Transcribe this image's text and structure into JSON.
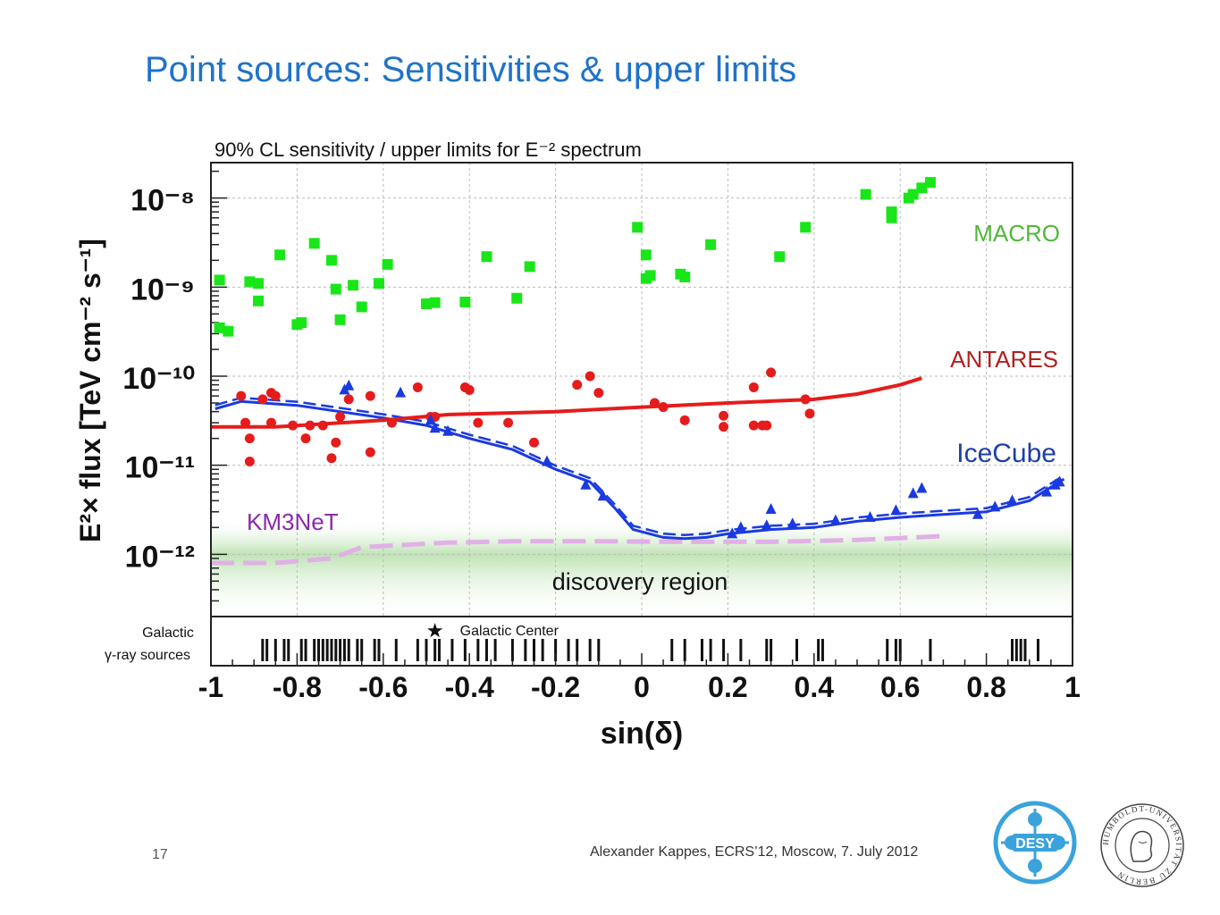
{
  "slide": {
    "title": "Point sources: Sensitivities & upper limits",
    "footer": "Alexander Kappes, ECRS’12, Moscow, 7. July 2012",
    "page_number": "17"
  },
  "logos": {
    "desy": "DESY",
    "humboldt": "HUMBOLDT-UNIVERSITÄT ZU BERLIN"
  },
  "chart_data": {
    "type": "scatter",
    "title": "90% CL sensitivity / upper limits for E⁻² spectrum",
    "xlabel": "sin(δ)",
    "ylabel": "E²× flux [TeV cm⁻² s⁻¹]",
    "xlim": [
      -1,
      1
    ],
    "ylim": [
      2e-13,
      2.5e-08
    ],
    "y_scale": "log",
    "grid": true,
    "x_ticks": [
      "-1",
      "-0.8",
      "-0.6",
      "-0.4",
      "-0.2",
      "0",
      "0.2",
      "0.4",
      "0.6",
      "0.8",
      "1"
    ],
    "y_ticks": [
      {
        "value": 1e-08,
        "label": "10⁻⁸"
      },
      {
        "value": 1e-09,
        "label": "10⁻⁹"
      },
      {
        "value": 1e-10,
        "label": "10⁻¹⁰"
      },
      {
        "value": 1e-11,
        "label": "10⁻¹¹"
      },
      {
        "value": 1e-12,
        "label": "10⁻¹²"
      }
    ],
    "colors": {
      "macro": "#19e619",
      "antares": "#e51c1c",
      "icecube": "#1a3ae0",
      "km3net": "#e0b0e6",
      "discovery": "#bfe3b4",
      "grid": "#bbbbbb"
    },
    "series": [
      {
        "name": "MACRO",
        "kind": "points",
        "marker": "square",
        "points": [
          [
            -0.98,
            1.2e-09
          ],
          [
            -0.98,
            3.5e-10
          ],
          [
            -0.96,
            3.2e-10
          ],
          [
            -0.91,
            1.15e-09
          ],
          [
            -0.89,
            1.1e-09
          ],
          [
            -0.89,
            7e-10
          ],
          [
            -0.84,
            2.3e-09
          ],
          [
            -0.8,
            3.8e-10
          ],
          [
            -0.79,
            4e-10
          ],
          [
            -0.76,
            3.1e-09
          ],
          [
            -0.72,
            2e-09
          ],
          [
            -0.71,
            9.5e-10
          ],
          [
            -0.7,
            4.3e-10
          ],
          [
            -0.67,
            1.05e-09
          ],
          [
            -0.65,
            6e-10
          ],
          [
            -0.61,
            1.1e-09
          ],
          [
            -0.59,
            1.8e-09
          ],
          [
            -0.5,
            6.5e-10
          ],
          [
            -0.48,
            6.7e-10
          ],
          [
            -0.41,
            6.8e-10
          ],
          [
            -0.36,
            2.2e-09
          ],
          [
            -0.29,
            7.5e-10
          ],
          [
            -0.26,
            1.7e-09
          ],
          [
            -0.01,
            4.7e-09
          ],
          [
            0.01,
            2.3e-09
          ],
          [
            0.01,
            1.25e-09
          ],
          [
            0.02,
            1.35e-09
          ],
          [
            0.09,
            1.4e-09
          ],
          [
            0.1,
            1.3e-09
          ],
          [
            0.16,
            3e-09
          ],
          [
            0.32,
            2.2e-09
          ],
          [
            0.38,
            4.7e-09
          ],
          [
            0.52,
            1.1e-08
          ],
          [
            0.58,
            6e-09
          ],
          [
            0.58,
            7e-09
          ],
          [
            0.62,
            1e-08
          ],
          [
            0.63,
            1.1e-08
          ],
          [
            0.65,
            1.3e-08
          ],
          [
            0.67,
            1.5e-08
          ]
        ]
      },
      {
        "name": "ANTARES",
        "kind": "points+line",
        "marker": "circle",
        "points": [
          [
            -0.93,
            6e-11
          ],
          [
            -0.92,
            3e-11
          ],
          [
            -0.91,
            2e-11
          ],
          [
            -0.91,
            1.1e-11
          ],
          [
            -0.88,
            5.5e-11
          ],
          [
            -0.86,
            6.5e-11
          ],
          [
            -0.86,
            3e-11
          ],
          [
            -0.85,
            6e-11
          ],
          [
            -0.81,
            2.8e-11
          ],
          [
            -0.78,
            2e-11
          ],
          [
            -0.77,
            2.8e-11
          ],
          [
            -0.74,
            2.8e-11
          ],
          [
            -0.72,
            1.2e-11
          ],
          [
            -0.71,
            1.8e-11
          ],
          [
            -0.7,
            3.5e-11
          ],
          [
            -0.68,
            5.5e-11
          ],
          [
            -0.63,
            6e-11
          ],
          [
            -0.63,
            1.4e-11
          ],
          [
            -0.58,
            3e-11
          ],
          [
            -0.52,
            7.5e-11
          ],
          [
            -0.49,
            3.5e-11
          ],
          [
            -0.48,
            3.5e-11
          ],
          [
            -0.41,
            7.5e-11
          ],
          [
            -0.4,
            7e-11
          ],
          [
            -0.38,
            3e-11
          ],
          [
            -0.31,
            3e-11
          ],
          [
            -0.25,
            1.8e-11
          ],
          [
            -0.15,
            8e-11
          ],
          [
            -0.12,
            1e-10
          ],
          [
            -0.1,
            6.5e-11
          ],
          [
            0.03,
            5e-11
          ],
          [
            0.05,
            4.5e-11
          ],
          [
            0.1,
            3.2e-11
          ],
          [
            0.19,
            2.7e-11
          ],
          [
            0.19,
            3.6e-11
          ],
          [
            0.26,
            7.5e-11
          ],
          [
            0.26,
            2.8e-11
          ],
          [
            0.28,
            2.8e-11
          ],
          [
            0.29,
            2.8e-11
          ],
          [
            0.3,
            1.1e-10
          ],
          [
            0.38,
            5.5e-11
          ],
          [
            0.39,
            3.8e-11
          ]
        ],
        "line": [
          [
            -1.0,
            2.7e-11
          ],
          [
            -0.85,
            2.7e-11
          ],
          [
            -0.6,
            3.2e-11
          ],
          [
            -0.45,
            3.7e-11
          ],
          [
            -0.2,
            4e-11
          ],
          [
            0.0,
            4.5e-11
          ],
          [
            0.2,
            5e-11
          ],
          [
            0.4,
            5.5e-11
          ],
          [
            0.5,
            6.3e-11
          ],
          [
            0.6,
            8e-11
          ],
          [
            0.65,
            9.5e-11
          ]
        ]
      },
      {
        "name": "IceCube",
        "kind": "points+line",
        "marker": "triangle",
        "points": [
          [
            -0.69,
            7e-11
          ],
          [
            -0.68,
            7.8e-11
          ],
          [
            -0.56,
            6.5e-11
          ],
          [
            -0.49,
            3.2e-11
          ],
          [
            -0.48,
            2.6e-11
          ],
          [
            -0.45,
            2.4e-11
          ],
          [
            -0.22,
            1.1e-11
          ],
          [
            -0.13,
            6e-12
          ],
          [
            -0.09,
            4.5e-12
          ],
          [
            0.21,
            1.7e-12
          ],
          [
            0.23,
            2e-12
          ],
          [
            0.29,
            2.1e-12
          ],
          [
            0.3,
            3.2e-12
          ],
          [
            0.35,
            2.2e-12
          ],
          [
            0.45,
            2.4e-12
          ],
          [
            0.53,
            2.6e-12
          ],
          [
            0.59,
            3.1e-12
          ],
          [
            0.63,
            4.8e-12
          ],
          [
            0.65,
            5.5e-12
          ],
          [
            0.78,
            2.8e-12
          ],
          [
            0.82,
            3.4e-12
          ],
          [
            0.86,
            4e-12
          ],
          [
            0.94,
            5e-12
          ],
          [
            0.96,
            6e-12
          ],
          [
            0.97,
            6.5e-12
          ]
        ],
        "line": [
          [
            -0.99,
            4.3e-11
          ],
          [
            -0.93,
            5.2e-11
          ],
          [
            -0.8,
            4.7e-11
          ],
          [
            -0.6,
            3.4e-11
          ],
          [
            -0.5,
            2.8e-11
          ],
          [
            -0.4,
            2e-11
          ],
          [
            -0.3,
            1.5e-11
          ],
          [
            -0.2,
            9e-12
          ],
          [
            -0.12,
            6.5e-12
          ],
          [
            -0.06,
            3.2e-12
          ],
          [
            -0.02,
            1.9e-12
          ],
          [
            0.05,
            1.55e-12
          ],
          [
            0.1,
            1.5e-12
          ],
          [
            0.15,
            1.55e-12
          ],
          [
            0.2,
            1.7e-12
          ],
          [
            0.3,
            1.9e-12
          ],
          [
            0.4,
            2e-12
          ],
          [
            0.5,
            2.35e-12
          ],
          [
            0.6,
            2.6e-12
          ],
          [
            0.7,
            2.8e-12
          ],
          [
            0.8,
            3e-12
          ],
          [
            0.9,
            4e-12
          ],
          [
            0.98,
            7e-12
          ]
        ]
      },
      {
        "name": "KM3NeT",
        "kind": "line",
        "dash": true,
        "line": [
          [
            -1.0,
            8e-13
          ],
          [
            -0.85,
            8e-13
          ],
          [
            -0.72,
            9e-13
          ],
          [
            -0.65,
            1.2e-12
          ],
          [
            -0.45,
            1.35e-12
          ],
          [
            -0.3,
            1.4e-12
          ],
          [
            -0.1,
            1.4e-12
          ],
          [
            0.1,
            1.38e-12
          ],
          [
            0.3,
            1.38e-12
          ],
          [
            0.5,
            1.45e-12
          ],
          [
            0.7,
            1.6e-12
          ]
        ]
      }
    ],
    "labels": {
      "macro": "MACRO",
      "antares": "ANTARES",
      "icecube": "IceCube",
      "km3net": "KM3NeT",
      "discovery": "discovery region"
    },
    "discovery_region": {
      "ymax": 1.8e-12
    },
    "gamma_sources": {
      "label_line1": "Galactic",
      "label_line2": "γ-ray sources",
      "galactic_center_label": "Galactic Center",
      "galactic_center_x": -0.48,
      "positions": [
        -0.88,
        -0.87,
        -0.85,
        -0.83,
        -0.82,
        -0.79,
        -0.78,
        -0.76,
        -0.75,
        -0.74,
        -0.73,
        -0.72,
        -0.71,
        -0.7,
        -0.69,
        -0.68,
        -0.66,
        -0.65,
        -0.62,
        -0.61,
        -0.57,
        -0.52,
        -0.5,
        -0.48,
        -0.47,
        -0.44,
        -0.41,
        -0.38,
        -0.36,
        -0.34,
        -0.3,
        -0.27,
        -0.25,
        -0.23,
        -0.2,
        -0.17,
        -0.15,
        -0.12,
        -0.1,
        0.07,
        0.1,
        0.14,
        0.16,
        0.19,
        0.23,
        0.29,
        0.3,
        0.36,
        0.41,
        0.42,
        0.57,
        0.59,
        0.6,
        0.67,
        0.86,
        0.87,
        0.88,
        0.89,
        0.92
      ]
    }
  }
}
